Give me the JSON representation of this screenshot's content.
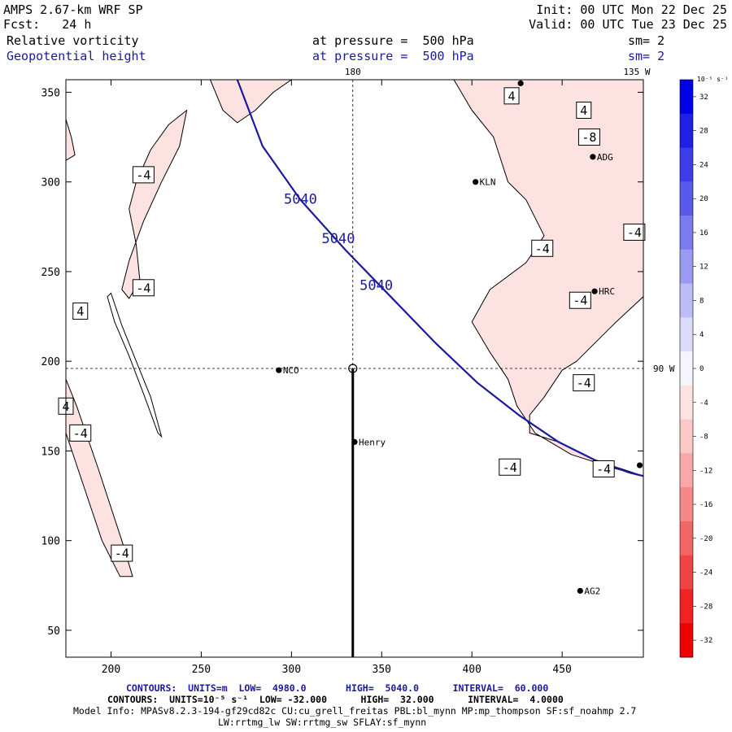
{
  "header": {
    "model": "AMPS 2.67-km WRF SP",
    "init": "Init: 00 UTC Mon 22 Dec 25",
    "forecast": "Fcst:   24 h",
    "valid": "Valid: 00 UTC Tue 23 Dec 25",
    "field1": "Relative vorticity",
    "field1_level": "at pressure =  500 hPa",
    "field1_sm": "sm= 2",
    "field2": "Geopotential height",
    "field2_level": "at pressure =  500 hPa",
    "field2_sm": "sm= 2"
  },
  "colors": {
    "height_contour": "#1a1aa0",
    "vorticity_negative_fill": "#fde2e2"
  },
  "chart_data": {
    "type": "contour_map",
    "xlim": [
      175,
      495
    ],
    "ylim": [
      35,
      357
    ],
    "x_ticks": [
      200,
      250,
      300,
      350,
      400,
      450
    ],
    "y_ticks": [
      50,
      100,
      150,
      200,
      250,
      300,
      350
    ],
    "map_labels": {
      "lon_180": "180",
      "lon_135w": "135 W",
      "lon_90w": "90 W"
    },
    "reference_lines": {
      "meridian_x": 334,
      "parallel_y": 196
    },
    "height_contours": [
      {
        "value": "5040",
        "points": [
          [
            270,
            357
          ],
          [
            284,
            320
          ],
          [
            305,
            290
          ],
          [
            330,
            262
          ],
          [
            355,
            236
          ],
          [
            380,
            210
          ],
          [
            403,
            188
          ],
          [
            426,
            170
          ],
          [
            448,
            155
          ],
          [
            468,
            145
          ],
          [
            487,
            138
          ],
          [
            495,
            136
          ]
        ]
      }
    ],
    "height_labels": [
      {
        "text": "5040",
        "x": 305,
        "y": 290
      },
      {
        "text": "5040",
        "x": 326,
        "y": 268
      },
      {
        "text": "5040",
        "x": 347,
        "y": 242
      }
    ],
    "vorticity_regions": [
      {
        "sign": "negative",
        "points": [
          [
            175,
            190
          ],
          [
            181,
            175
          ],
          [
            193,
            140
          ],
          [
            206,
            100
          ],
          [
            212,
            80
          ],
          [
            205,
            80
          ],
          [
            195,
            100
          ],
          [
            185,
            130
          ],
          [
            175,
            160
          ]
        ]
      },
      {
        "sign": "negative",
        "points": [
          [
            214,
            300
          ],
          [
            222,
            318
          ],
          [
            232,
            332
          ],
          [
            242,
            340
          ],
          [
            238,
            320
          ],
          [
            228,
            300
          ],
          [
            218,
            278
          ],
          [
            210,
            256
          ],
          [
            206,
            240
          ],
          [
            210,
            235
          ],
          [
            216,
            245
          ],
          [
            214,
            265
          ],
          [
            210,
            285
          ]
        ]
      },
      {
        "sign": "negative",
        "points": [
          [
            390,
            357
          ],
          [
            495,
            357
          ],
          [
            495,
            236
          ],
          [
            480,
            222
          ],
          [
            470,
            212
          ],
          [
            458,
            200
          ],
          [
            450,
            195
          ],
          [
            440,
            180
          ],
          [
            432,
            170
          ],
          [
            432,
            160
          ],
          [
            448,
            155
          ],
          [
            468,
            145
          ],
          [
            495,
            136
          ],
          [
            480,
            140
          ],
          [
            455,
            148
          ],
          [
            435,
            160
          ],
          [
            425,
            175
          ],
          [
            420,
            190
          ],
          [
            410,
            205
          ],
          [
            400,
            222
          ],
          [
            410,
            240
          ],
          [
            430,
            255
          ],
          [
            440,
            270
          ],
          [
            430,
            290
          ],
          [
            420,
            300
          ],
          [
            412,
            325
          ],
          [
            400,
            340
          ]
        ]
      },
      {
        "sign": "negative",
        "points": [
          [
            175,
            335
          ],
          [
            178,
            325
          ],
          [
            180,
            315
          ],
          [
            175,
            312
          ]
        ]
      },
      {
        "sign": "negative",
        "points": [
          [
            255,
            357
          ],
          [
            262,
            340
          ],
          [
            270,
            333
          ],
          [
            280,
            340
          ],
          [
            290,
            350
          ],
          [
            300,
            357
          ]
        ]
      }
    ],
    "vorticity_positive_contours": [
      {
        "sign": "positive",
        "points": [
          [
            200,
            238
          ],
          [
            206,
            220
          ],
          [
            214,
            200
          ],
          [
            222,
            180
          ],
          [
            228,
            158
          ],
          [
            226,
            160
          ],
          [
            218,
            182
          ],
          [
            210,
            203
          ],
          [
            202,
            222
          ],
          [
            198,
            236
          ]
        ]
      }
    ],
    "contour_labels": [
      {
        "text": "-4",
        "x": 218,
        "y": 304
      },
      {
        "text": "-4",
        "x": 218,
        "y": 241
      },
      {
        "text": "4",
        "x": 175,
        "y": 175
      },
      {
        "text": "4",
        "x": 183,
        "y": 228
      },
      {
        "text": "-4",
        "x": 183,
        "y": 160
      },
      {
        "text": "-4",
        "x": 206,
        "y": 93
      },
      {
        "text": "-4",
        "x": 439,
        "y": 263
      },
      {
        "text": "-4",
        "x": 460,
        "y": 234
      },
      {
        "text": "-4",
        "x": 462,
        "y": 188
      },
      {
        "text": "-4",
        "x": 490,
        "y": 272
      },
      {
        "text": "-4",
        "x": 421,
        "y": 141
      },
      {
        "text": "-4",
        "x": 473,
        "y": 140
      },
      {
        "text": "-8",
        "x": 465,
        "y": 325
      },
      {
        "text": "4",
        "x": 422,
        "y": 348
      },
      {
        "text": "4",
        "x": 462,
        "y": 340
      }
    ],
    "stations": [
      {
        "name": "NCO",
        "x": 293,
        "y": 195
      },
      {
        "name": "Henry",
        "x": 335,
        "y": 155
      },
      {
        "name": "KLN",
        "x": 402,
        "y": 300
      },
      {
        "name": "HRC",
        "x": 468,
        "y": 239
      },
      {
        "name": "AG2",
        "x": 460,
        "y": 72
      },
      {
        "name": "ADG",
        "x": 467,
        "y": 314
      },
      {
        "name": "",
        "x": 493,
        "y": 142
      },
      {
        "name": "",
        "x": 427,
        "y": 355
      }
    ],
    "colorbar": {
      "unit": "10⁻⁵ s⁻¹",
      "labels": [
        "32",
        "28",
        "24",
        "20",
        "16",
        "12",
        "8",
        "4",
        "0",
        "-4",
        "-8",
        "-12",
        "-16",
        "-20",
        "-24",
        "-28",
        "-32"
      ],
      "colors": [
        "#0000e6",
        "#1f1fe6",
        "#3c3ce8",
        "#5a5aea",
        "#7b7bee",
        "#9a9af2",
        "#bcbcf6",
        "#dcdcfa",
        "#f5f5ff",
        "#fde2e2",
        "#fbc8c8",
        "#f8a8a8",
        "#f58888",
        "#f26666",
        "#f04444",
        "#f02222",
        "#f00000"
      ]
    }
  },
  "footer": {
    "height_contours": "CONTOURS:  UNITS=m  LOW=  4980.0       HIGH=  5040.0      INTERVAL=  60.000",
    "vort_contours": "CONTOURS:  UNITS=10⁻⁵ s⁻¹  LOW= -32.000      HIGH=  32.000      INTERVAL=  4.0000",
    "model_info": "Model Info: MPASv8.2.3-194-gf29cd82c CU:cu_grell_freitas PBL:bl_mynn MP:mp_thompson SF:sf_noahmp 2.7",
    "model_info2": "LW:rrtmg_lw SW:rrtmg_sw SFLAY:sf_mynn"
  }
}
